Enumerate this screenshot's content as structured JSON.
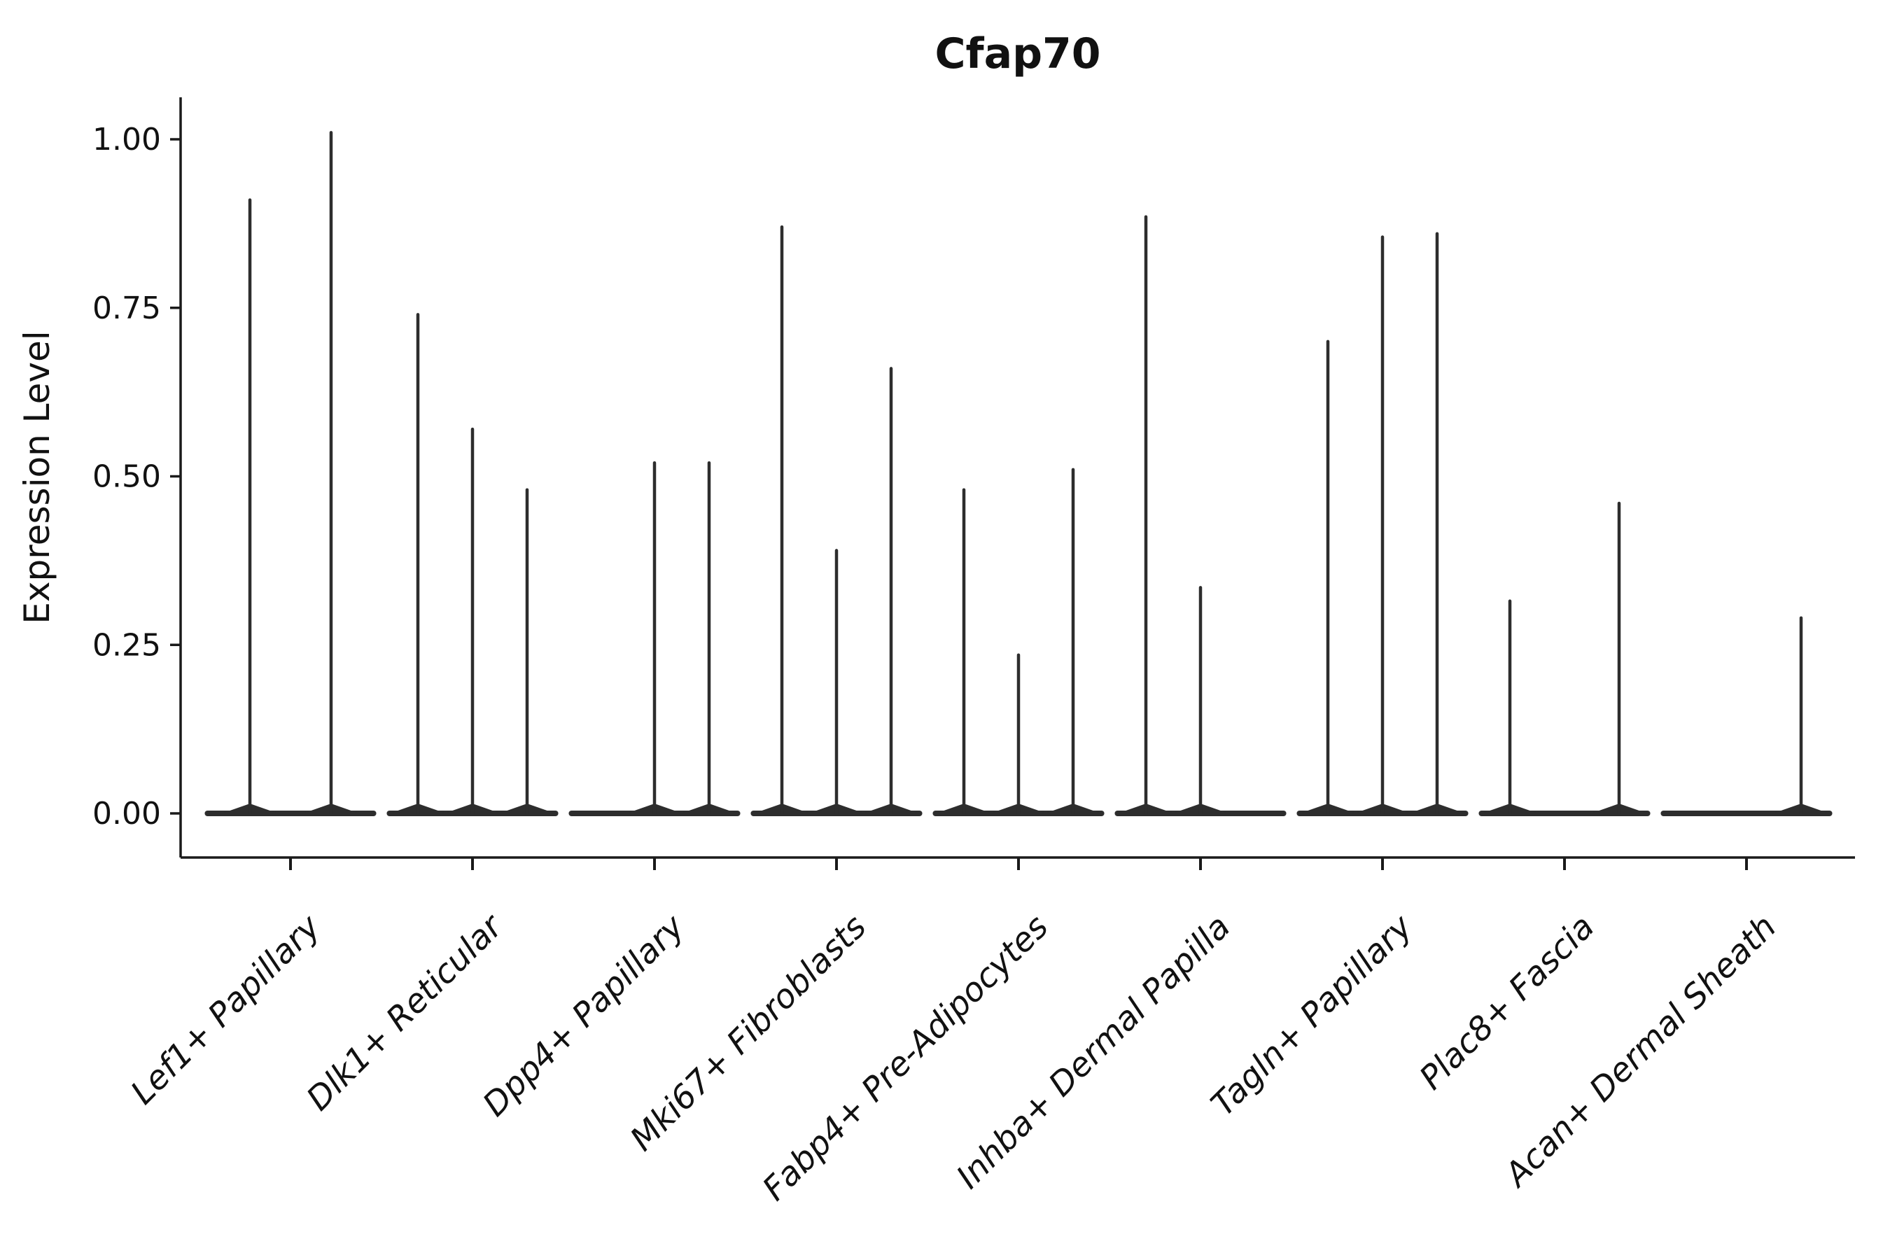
{
  "chart_data": {
    "type": "violin",
    "title": "Cfap70",
    "ylabel": "Expression Level",
    "xlabel": "",
    "ylim": [
      -0.065,
      1.065
    ],
    "yticks": [
      0.0,
      0.25,
      0.5,
      0.75,
      1.0
    ],
    "ytick_labels": [
      "0.00",
      "0.25",
      "0.50",
      "0.75",
      "1.00"
    ],
    "grid": false,
    "legend": null,
    "background": "#ffffff",
    "ink_color": "#1a1a1a",
    "violin_color": "#2d2d2d",
    "baseline_halfwidth_frac": 0.456,
    "categories": [
      "Lef1+ Papillary",
      "Dlk1+ Reticular",
      "Dpp4+ Papillary",
      "Mki67+ Fibroblasts",
      "Fabp4+ Pre-Adipocytes",
      "Inhba+ Dermal Papilla",
      "Tagln+ Papillary",
      "Plac8+ Fascia",
      "Acan+ Dermal Sheath"
    ],
    "groups": [
      {
        "category": "Lef1+ Papillary",
        "violins": [
          {
            "offset_frac": -0.223,
            "max": 0.91
          },
          {
            "offset_frac": 0.223,
            "max": 1.01
          }
        ]
      },
      {
        "category": "Dlk1+ Reticular",
        "violins": [
          {
            "offset_frac": -0.3,
            "max": 0.74
          },
          {
            "offset_frac": 0.0,
            "max": 0.57
          },
          {
            "offset_frac": 0.3,
            "max": 0.48
          }
        ]
      },
      {
        "category": "Dpp4+ Papillary",
        "violins": [
          {
            "offset_frac": 0.0,
            "max": 0.52
          },
          {
            "offset_frac": 0.3,
            "max": 0.52
          }
        ]
      },
      {
        "category": "Mki67+ Fibroblasts",
        "violins": [
          {
            "offset_frac": -0.3,
            "max": 0.87
          },
          {
            "offset_frac": 0.0,
            "max": 0.39
          },
          {
            "offset_frac": 0.3,
            "max": 0.66
          }
        ]
      },
      {
        "category": "Fabp4+ Pre-Adipocytes",
        "violins": [
          {
            "offset_frac": -0.3,
            "max": 0.48
          },
          {
            "offset_frac": 0.0,
            "max": 0.235
          },
          {
            "offset_frac": 0.3,
            "max": 0.51
          }
        ]
      },
      {
        "category": "Inhba+ Dermal Papilla",
        "violins": [
          {
            "offset_frac": -0.3,
            "max": 0.885
          },
          {
            "offset_frac": 0.0,
            "max": 0.335
          }
        ]
      },
      {
        "category": "Tagln+ Papillary",
        "violins": [
          {
            "offset_frac": -0.3,
            "max": 0.7
          },
          {
            "offset_frac": 0.0,
            "max": 0.855
          },
          {
            "offset_frac": 0.3,
            "max": 0.86
          }
        ]
      },
      {
        "category": "Plac8+ Fascia",
        "violins": [
          {
            "offset_frac": -0.3,
            "max": 0.315
          },
          {
            "offset_frac": 0.3,
            "max": 0.46
          }
        ]
      },
      {
        "category": "Acan+ Dermal Sheath",
        "violins": [
          {
            "offset_frac": 0.3,
            "max": 0.29
          }
        ]
      }
    ]
  }
}
